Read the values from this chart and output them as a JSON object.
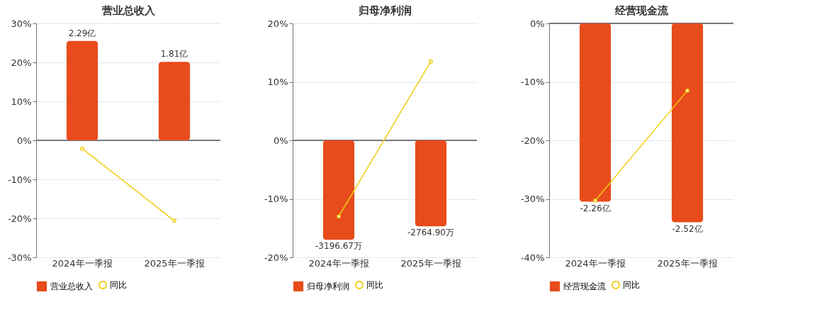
{
  "chart_data": [
    {
      "type": "bar",
      "title": "营业总收入",
      "categories": [
        "2024年一季报",
        "2025年一季报"
      ],
      "series": [
        {
          "name": "营业总收入",
          "axis": "y2",
          "color": "#e84c1c",
          "values": [
            2.29,
            1.81
          ],
          "value_labels": [
            "2.29亿",
            "1.81亿"
          ]
        },
        {
          "name": "同比",
          "type": "line",
          "color": "#f2cd12",
          "marker": "circle",
          "values": [
            -2.1,
            -20.6
          ]
        }
      ],
      "ylim": [
        -30,
        30
      ],
      "yticks": [
        {
          "value": -30,
          "label": "-30%"
        },
        {
          "value": -20,
          "label": "-20%"
        },
        {
          "value": -10,
          "label": "-10%"
        },
        {
          "value": 0,
          "label": "0%"
        },
        {
          "value": 10,
          "label": "10%"
        },
        {
          "value": 20,
          "label": "20%"
        },
        {
          "value": 30,
          "label": "30%"
        }
      ],
      "grid": "y",
      "legend": "bottom"
    },
    {
      "type": "bar",
      "title": "归母净利润",
      "categories": [
        "2024年一季报",
        "2025年一季报"
      ],
      "series": [
        {
          "name": "归母净利润",
          "axis": "y2",
          "color": "#e84c1c",
          "values": [
            -3196.67,
            -2764.9
          ],
          "value_labels": [
            "-3196.67万",
            "-2764.90万"
          ]
        },
        {
          "name": "同比",
          "type": "line",
          "color": "#f2cd12",
          "marker": "circle",
          "values": [
            -13.0,
            13.5
          ]
        }
      ],
      "ylim": [
        -20,
        20
      ],
      "yticks": [
        {
          "value": -20,
          "label": "-20%"
        },
        {
          "value": -10,
          "label": "-10%"
        },
        {
          "value": 0,
          "label": "0%"
        },
        {
          "value": 10,
          "label": "10%"
        },
        {
          "value": 20,
          "label": "20%"
        }
      ],
      "grid": "y",
      "legend": "bottom"
    },
    {
      "type": "bar",
      "title": "经营现金流",
      "categories": [
        "2024年一季报",
        "2025年一季报"
      ],
      "series": [
        {
          "name": "经营现金流",
          "axis": "y2",
          "color": "#e84c1c",
          "values": [
            -2.26,
            -2.52
          ],
          "value_labels": [
            "-2.26亿",
            "-2.52亿"
          ]
        },
        {
          "name": "同比",
          "type": "line",
          "color": "#f2cd12",
          "marker": "circle",
          "values": [
            -30.3,
            -11.5
          ]
        }
      ],
      "ylim": [
        -40,
        0
      ],
      "yticks": [
        {
          "value": -40,
          "label": "-40%"
        },
        {
          "value": -30,
          "label": "-30%"
        },
        {
          "value": -20,
          "label": "-20%"
        },
        {
          "value": -10,
          "label": "-10%"
        },
        {
          "value": 0,
          "label": "0%"
        }
      ],
      "grid": "y",
      "legend": "bottom"
    }
  ]
}
